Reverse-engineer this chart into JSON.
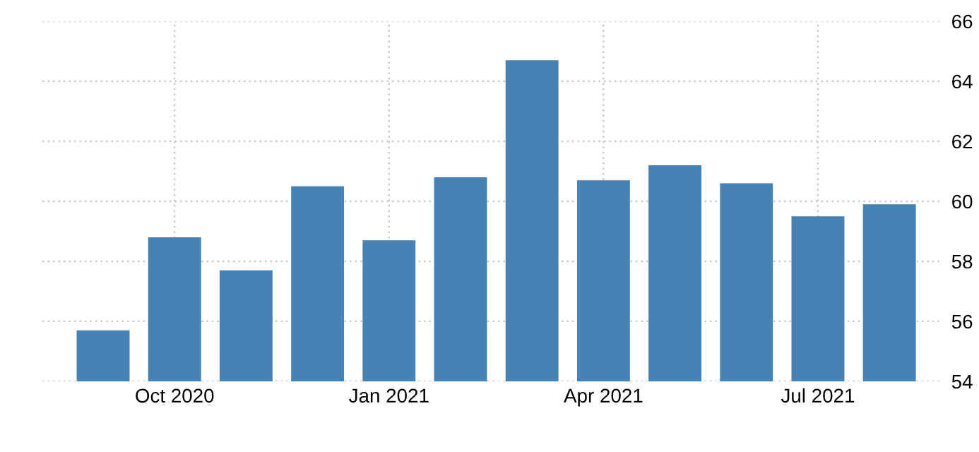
{
  "chart_data": {
    "type": "bar",
    "categories": [
      null,
      "Oct 2020",
      null,
      null,
      "Jan 2021",
      null,
      null,
      "Apr 2021",
      null,
      null,
      "Jul 2021",
      null
    ],
    "values": [
      55.7,
      58.8,
      57.7,
      60.5,
      58.7,
      60.8,
      64.7,
      60.7,
      61.2,
      60.6,
      59.5,
      59.9
    ],
    "color": "#4682b4",
    "ylim": [
      54,
      66
    ],
    "yticks": [
      54,
      56,
      58,
      60,
      62,
      64,
      66
    ],
    "grid": true
  }
}
